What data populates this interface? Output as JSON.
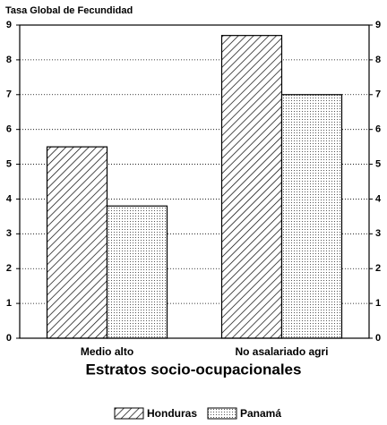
{
  "chart_data": {
    "type": "bar",
    "title": "Tasa Global de Fecundidad",
    "x_label": "Estratos socio-ocupacionales",
    "categories": [
      "Medio alto",
      "No asalariado agri"
    ],
    "series": [
      {
        "name": "Honduras",
        "color": "#000000",
        "pattern": "hatch",
        "values": [
          5.5,
          8.7
        ]
      },
      {
        "name": "Panamá",
        "color": "#000000",
        "pattern": "dots",
        "values": [
          3.8,
          7.0
        ]
      }
    ],
    "ylim": [
      0,
      9
    ],
    "yticks": [
      0,
      1,
      2,
      3,
      4,
      5,
      6,
      7,
      8,
      9
    ],
    "grid": true,
    "legend": "bottom"
  }
}
